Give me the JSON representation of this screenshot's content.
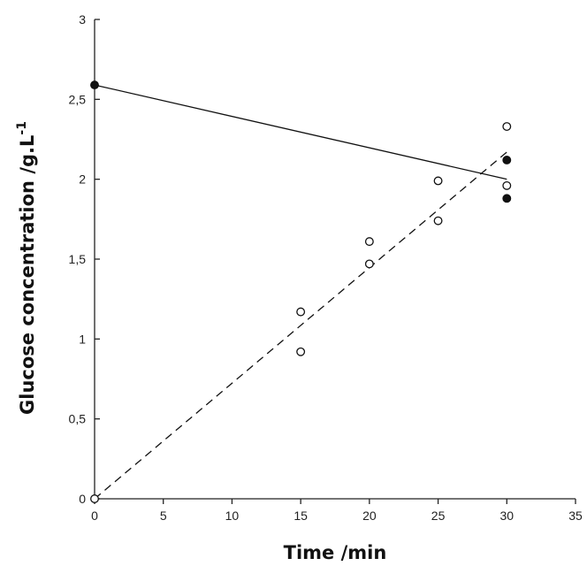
{
  "chart_data": {
    "type": "scatter",
    "xlabel": "Time /min",
    "ylabel": "Glucose concentration /g.L",
    "ylabel_sup": "-1",
    "xlim": [
      0,
      35
    ],
    "ylim": [
      0,
      3
    ],
    "x_ticks": [
      0,
      5,
      10,
      15,
      20,
      25,
      30,
      35
    ],
    "x_tick_labels": [
      "0",
      "5",
      "10",
      "15",
      "20",
      "25",
      "30",
      "35"
    ],
    "y_ticks": [
      0,
      0.5,
      1,
      1.5,
      2,
      2.5,
      3
    ],
    "y_tick_labels": [
      "0",
      "0,5",
      "1",
      "1,5",
      "2",
      "2,5",
      "3"
    ],
    "grid": false,
    "series": [
      {
        "marker": "filled-circle",
        "points": [
          [
            0,
            2.59
          ],
          [
            30,
            2.12
          ],
          [
            30,
            1.88
          ]
        ],
        "fit": {
          "style": "solid",
          "from": [
            0,
            2.59
          ],
          "to": [
            30,
            2.0
          ]
        }
      },
      {
        "marker": "open-circle",
        "points": [
          [
            0,
            0.0
          ],
          [
            15,
            1.17
          ],
          [
            15,
            0.92
          ],
          [
            20,
            1.61
          ],
          [
            20,
            1.47
          ],
          [
            25,
            1.99
          ],
          [
            25,
            1.74
          ],
          [
            30,
            2.33
          ],
          [
            30,
            1.96
          ]
        ],
        "fit": {
          "style": "dashed",
          "from": [
            0,
            0.0
          ],
          "to": [
            30,
            2.17
          ]
        }
      }
    ],
    "colors": {
      "axis": "#222222",
      "marker": "#111111"
    }
  }
}
